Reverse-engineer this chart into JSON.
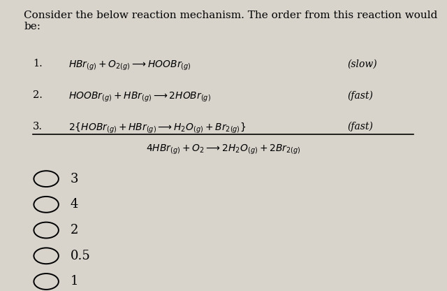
{
  "title": "Consider the below reaction mechanism. The order from this reaction would be:",
  "title_fontsize": 11,
  "background_color": "#d8d4cc",
  "text_color": "#000000",
  "reactions": [
    {
      "number": "1.",
      "equation": "$HBr_{(g)}+O_{2(g)}\\longrightarrow HOOBr_{(g)}$",
      "label": "(slow)"
    },
    {
      "number": "2.",
      "equation": "$HOOBr_{(g)}+HBr_{(g)}\\longrightarrow 2HOBr_{(g)}$",
      "label": "(fast)"
    },
    {
      "number": "3.",
      "equation": "$2\\{HOBr_{(g)}+HBr_{(g)}\\longrightarrow H_2O_{(g)}+Br_{2(g)}\\}$",
      "label": "(fast)"
    }
  ],
  "overall": "$4HBr_{(g)}+O_2\\longrightarrow 2H_2O_{(g)}+2Br_{2(g)}$",
  "choices": [
    "3",
    "4",
    "2",
    "0.5",
    "1"
  ],
  "choice_fontsize": 13
}
